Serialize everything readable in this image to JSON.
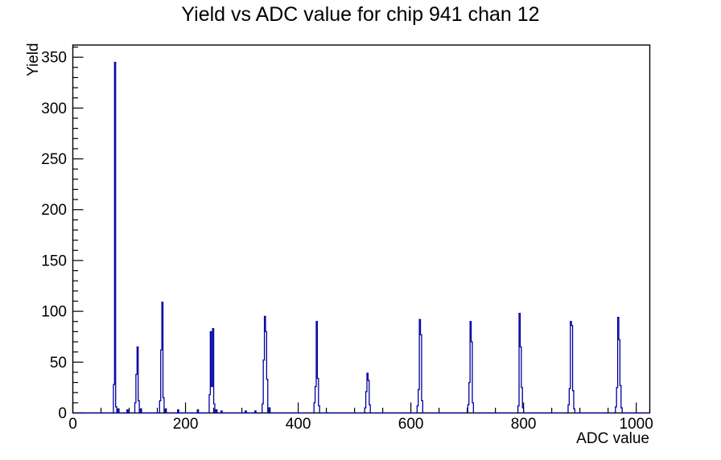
{
  "window": {
    "background_color": "#ffffff"
  },
  "chart_data": {
    "type": "bar",
    "subtype": "root-style step histogram",
    "title": "Yield vs ADC value for chip 941 chan 12",
    "xlabel": "ADC value",
    "ylabel": "Yield",
    "xlim": [
      0,
      1024
    ],
    "ylim": [
      0,
      362
    ],
    "x_major_ticks": [
      0,
      200,
      400,
      600,
      800,
      1000
    ],
    "x_minor_step": 50,
    "y_major_ticks": [
      0,
      50,
      100,
      150,
      200,
      250,
      300,
      350
    ],
    "y_minor_step": 10,
    "grid": false,
    "legend": "none",
    "line_color": "#0000a0",
    "axis_color": "#000000",
    "bin_half_width": 1,
    "peaks": [
      {
        "adc": 75,
        "yield": 345
      },
      {
        "adc": 115,
        "yield": 65
      },
      {
        "adc": 159,
        "yield": 109
      },
      {
        "adc": 249,
        "yield": 83
      },
      {
        "adc": 341,
        "yield": 95
      },
      {
        "adc": 433,
        "yield": 90
      },
      {
        "adc": 523,
        "yield": 39
      },
      {
        "adc": 616,
        "yield": 92
      },
      {
        "adc": 706,
        "yield": 90
      },
      {
        "adc": 793,
        "yield": 98
      },
      {
        "adc": 884,
        "yield": 90
      },
      {
        "adc": 968,
        "yield": 94
      }
    ],
    "bins": [
      [
        73,
        28
      ],
      [
        75,
        345
      ],
      [
        77,
        6
      ],
      [
        81,
        4
      ],
      [
        97,
        3
      ],
      [
        111,
        10
      ],
      [
        113,
        38
      ],
      [
        115,
        65
      ],
      [
        117,
        12
      ],
      [
        121,
        4
      ],
      [
        155,
        12
      ],
      [
        157,
        62
      ],
      [
        159,
        109
      ],
      [
        161,
        15
      ],
      [
        165,
        4
      ],
      [
        187,
        3
      ],
      [
        222,
        3
      ],
      [
        243,
        18
      ],
      [
        245,
        80
      ],
      [
        247,
        26
      ],
      [
        249,
        83
      ],
      [
        251,
        9
      ],
      [
        255,
        3
      ],
      [
        264,
        2
      ],
      [
        307,
        2
      ],
      [
        324,
        2
      ],
      [
        337,
        9
      ],
      [
        339,
        52
      ],
      [
        341,
        95
      ],
      [
        343,
        80
      ],
      [
        345,
        33
      ],
      [
        349,
        5
      ],
      [
        429,
        10
      ],
      [
        431,
        26
      ],
      [
        433,
        90
      ],
      [
        435,
        34
      ],
      [
        437,
        7
      ],
      [
        519,
        5
      ],
      [
        521,
        21
      ],
      [
        523,
        39
      ],
      [
        525,
        32
      ],
      [
        527,
        8
      ],
      [
        612,
        7
      ],
      [
        614,
        23
      ],
      [
        616,
        92
      ],
      [
        618,
        77
      ],
      [
        620,
        12
      ],
      [
        702,
        8
      ],
      [
        704,
        30
      ],
      [
        706,
        90
      ],
      [
        708,
        70
      ],
      [
        710,
        10
      ],
      [
        791,
        7
      ],
      [
        793,
        98
      ],
      [
        795,
        65
      ],
      [
        797,
        25
      ],
      [
        799,
        5
      ],
      [
        880,
        8
      ],
      [
        882,
        24
      ],
      [
        884,
        90
      ],
      [
        886,
        86
      ],
      [
        888,
        22
      ],
      [
        890,
        4
      ],
      [
        964,
        6
      ],
      [
        966,
        25
      ],
      [
        968,
        94
      ],
      [
        970,
        72
      ],
      [
        972,
        27
      ],
      [
        974,
        5
      ]
    ]
  }
}
